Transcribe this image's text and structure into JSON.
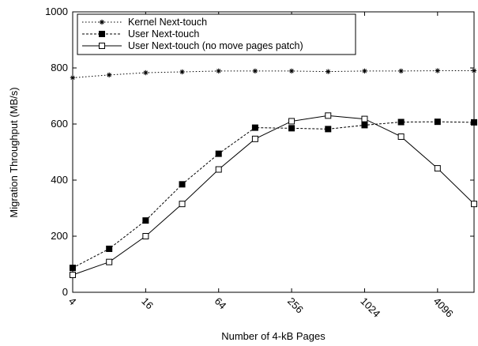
{
  "chart_data": {
    "type": "line",
    "title": "",
    "xlabel": "Number of 4-kB Pages",
    "ylabel": "Migration Throughput (MB/s)",
    "x_scale": "log2",
    "x": [
      4,
      8,
      16,
      32,
      64,
      128,
      256,
      512,
      1024,
      2048,
      4096,
      8192
    ],
    "xticks": [
      "4",
      "16",
      "64",
      "256",
      "1024",
      "4096"
    ],
    "ylim": [
      0,
      1000
    ],
    "yticks": [
      "0",
      "200",
      "400",
      "600",
      "800",
      "1000"
    ],
    "grid": false,
    "legend_position": "top-left",
    "series": [
      {
        "name": "Kernel Next-touch",
        "marker": "asterisk",
        "line_style": "dotted",
        "values": [
          765,
          775,
          783,
          786,
          789,
          789,
          789,
          787,
          789,
          789,
          790,
          790
        ]
      },
      {
        "name": "User Next-touch",
        "marker": "filled-square",
        "line_style": "dashed",
        "values": [
          87,
          155,
          256,
          385,
          494,
          587,
          585,
          582,
          596,
          607,
          608,
          606
        ]
      },
      {
        "name": "User Next-touch (no move pages patch)",
        "marker": "open-square",
        "line_style": "solid",
        "values": [
          62,
          108,
          200,
          315,
          438,
          547,
          610,
          630,
          618,
          555,
          442,
          315
        ]
      }
    ]
  }
}
